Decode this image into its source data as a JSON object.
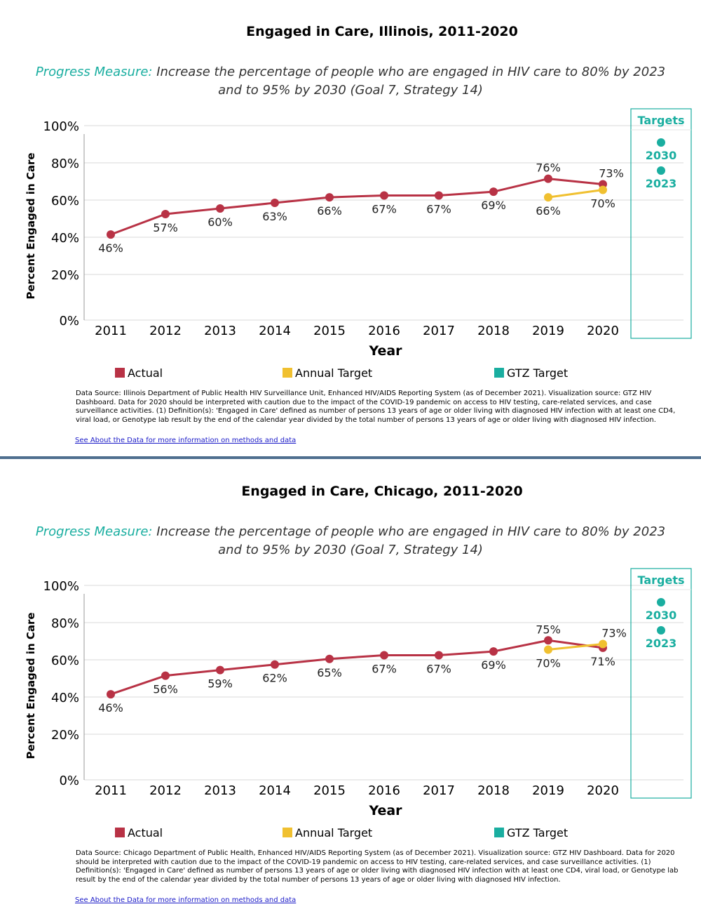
{
  "colors": {
    "actual": "#b83245",
    "annual_target": "#f0c030",
    "gtz_target": "#1aaea0",
    "grid": "#d9d9d9",
    "link": "#1a1ac8",
    "divider": "#4f6f8f"
  },
  "legend": {
    "actual": "Actual",
    "annual": "Annual Target",
    "gtz": "GTZ Target"
  },
  "targets_label": "Targets",
  "link_text": "See About the Data for more information on methods and data",
  "panels": [
    {
      "title": "Engaged in Care, Illinois, 2011-2020",
      "pm_label": "Progress Measure:",
      "pm_text": " Increase the percentage of people who are engaged in HIV care to 80% by 2023 and to 95% by 2030 (Goal 7, Strategy 14)",
      "note": "Data Source: Illinois Department of Public Health HIV Surveillance Unit, Enhanced HIV/AIDS Reporting System (as of December 2021). Visualization source: GTZ HIV Dashboard. Data for 2020 should be interpreted with caution due to the impact of the COVID-19 pandemic on access to HIV testing, care-related services, and case surveillance activities. (1) Definition(s): 'Engaged in Care' defined as number of persons 13 years of age or older living with diagnosed HIV infection with at least one CD4, viral load, or Genotype lab result by the end of the calendar year divided by the total number of persons 13 years of age or older living with diagnosed HIV infection."
    },
    {
      "title": "Engaged in Care, Chicago, 2011-2020",
      "pm_label": "Progress Measure:",
      "pm_text": " Increase the percentage of people who are engaged in HIV care to 80% by 2023 and to 95% by 2030 (Goal 7, Strategy 14)",
      "note": "Data Source: Chicago Department of Public Health, Enhanced HIV/AIDS Reporting System (as of December 2021). Visualization source: GTZ HIV Dashboard. Data for 2020 should be interpreted with caution due to the impact of the COVID-19 pandemic on access to HIV testing, care-related services, and case surveillance activities. (1) Definition(s): 'Engaged in Care' defined as number of persons 13 years of age or older living with diagnosed HIV infection with at least one CD4, viral load, or Genotype lab result by the end of the calendar year divided by the total number of persons 13 years of age or older living with diagnosed HIV infection."
    }
  ],
  "chart_data": [
    {
      "type": "line",
      "title": "Engaged in Care, Illinois, 2011-2020",
      "xlabel": "Year",
      "ylabel": "Percent Engaged in Care",
      "ylim": [
        0,
        100
      ],
      "yticks": [
        "0%",
        "20%",
        "40%",
        "60%",
        "80%",
        "100%"
      ],
      "yticks_values": [
        0,
        20,
        40,
        60,
        80,
        100
      ],
      "x": [
        "2011",
        "2012",
        "2013",
        "2014",
        "2015",
        "2016",
        "2017",
        "2018",
        "2019",
        "2020"
      ],
      "grid": true,
      "series": [
        {
          "name": "Actual",
          "x": [
            "2011",
            "2012",
            "2013",
            "2014",
            "2015",
            "2016",
            "2017",
            "2018",
            "2019",
            "2020"
          ],
          "values": [
            46,
            57,
            60,
            63,
            66,
            67,
            67,
            69,
            76,
            73
          ],
          "labels": [
            "46%",
            "57%",
            "60%",
            "63%",
            "66%",
            "67%",
            "67%",
            "69%",
            "76%",
            "73%"
          ]
        },
        {
          "name": "Annual Target",
          "x": [
            "2019",
            "2020"
          ],
          "values": [
            66,
            70
          ],
          "labels": [
            "66%",
            "70%"
          ]
        }
      ],
      "gtz_targets": [
        {
          "label": "2030",
          "value": 95
        },
        {
          "label": "2023",
          "value": 80
        }
      ]
    },
    {
      "type": "line",
      "title": "Engaged in Care, Chicago, 2011-2020",
      "xlabel": "Year",
      "ylabel": "Percent Engaged in Care",
      "ylim": [
        0,
        100
      ],
      "yticks": [
        "0%",
        "20%",
        "40%",
        "60%",
        "80%",
        "100%"
      ],
      "yticks_values": [
        0,
        20,
        40,
        60,
        80,
        100
      ],
      "x": [
        "2011",
        "2012",
        "2013",
        "2014",
        "2015",
        "2016",
        "2017",
        "2018",
        "2019",
        "2020"
      ],
      "grid": true,
      "series": [
        {
          "name": "Actual",
          "x": [
            "2011",
            "2012",
            "2013",
            "2014",
            "2015",
            "2016",
            "2017",
            "2018",
            "2019",
            "2020"
          ],
          "values": [
            46,
            56,
            59,
            62,
            65,
            67,
            67,
            69,
            75,
            71
          ],
          "labels": [
            "46%",
            "56%",
            "59%",
            "62%",
            "65%",
            "67%",
            "67%",
            "69%",
            "75%",
            "71%"
          ]
        },
        {
          "name": "Annual Target",
          "x": [
            "2019",
            "2020"
          ],
          "values": [
            70,
            73
          ],
          "labels": [
            "70%",
            "73%"
          ]
        }
      ],
      "gtz_targets": [
        {
          "label": "2030",
          "value": 95
        },
        {
          "label": "2023",
          "value": 80
        }
      ]
    }
  ]
}
